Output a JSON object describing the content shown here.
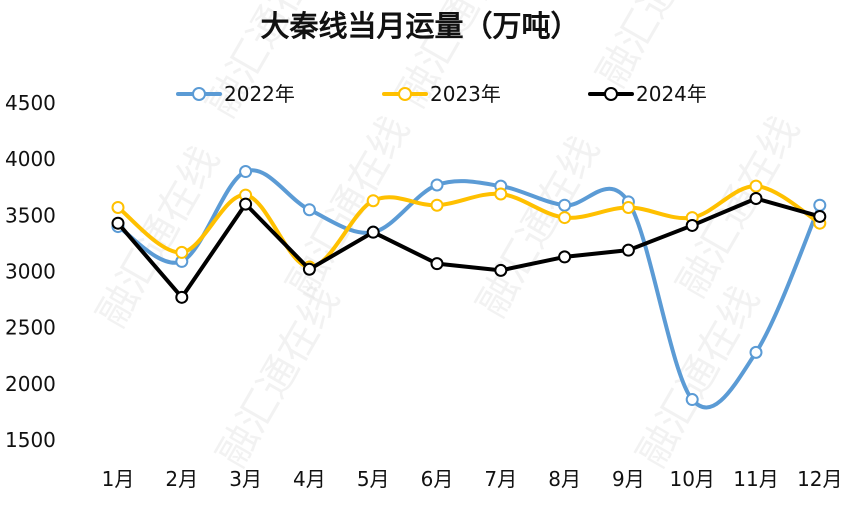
{
  "watermark": "融汇通在线",
  "chart_data": {
    "type": "line",
    "title": "大秦线当月运量（万吨）",
    "xlabel": "",
    "ylabel": "",
    "categories": [
      "1月",
      "2月",
      "3月",
      "4月",
      "5月",
      "6月",
      "7月",
      "8月",
      "9月",
      "10月",
      "11月",
      "12月"
    ],
    "y_ticks": [
      "1500",
      "2000",
      "2500",
      "3000",
      "3500",
      "4000",
      "4500"
    ],
    "ylim": [
      1500,
      4500
    ],
    "grid": false,
    "legend_position": "top",
    "series": [
      {
        "name": "2022年",
        "color": "#5b9bd5",
        "smooth": true,
        "values": [
          3400,
          3090,
          3890,
          3550,
          3350,
          3770,
          3760,
          3590,
          3620,
          1860,
          2280,
          3590
        ]
      },
      {
        "name": "2023年",
        "color": "#ffc000",
        "smooth": true,
        "values": [
          3570,
          3170,
          3680,
          3040,
          3630,
          3590,
          3690,
          3480,
          3570,
          3480,
          3760,
          3430
        ]
      },
      {
        "name": "2024年",
        "color": "#000000",
        "smooth": false,
        "values": [
          3430,
          2770,
          3600,
          3020,
          3350,
          3070,
          3010,
          3130,
          3190,
          3410,
          3650,
          3490
        ]
      }
    ]
  }
}
